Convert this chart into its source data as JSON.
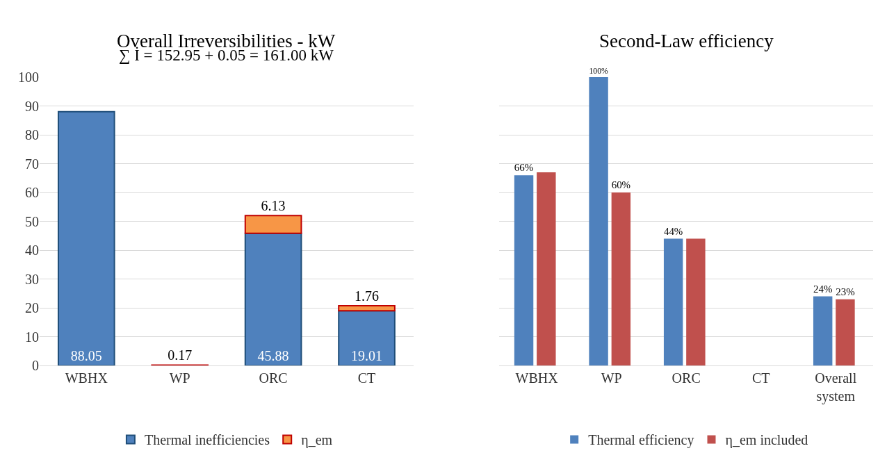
{
  "chart_data": [
    {
      "type": "bar",
      "title": "Overall Irreversibilities - kW",
      "stacked": true,
      "categories": [
        "WBHX",
        "WP",
        "ORC",
        "CT"
      ],
      "series": [
        {
          "name": "Thermal inefficiencies",
          "color": "#4f81bd",
          "values": [
            88.05,
            null,
            45.88,
            19.01
          ],
          "value_labels": [
            "88.05",
            null,
            "45.88",
            "19.01"
          ]
        },
        {
          "name": "η_em",
          "color": "#f79646",
          "values": [
            null,
            0.17,
            6.13,
            1.76
          ],
          "value_labels": [
            null,
            "0.17",
            "6.13",
            "1.76"
          ]
        }
      ],
      "ylim": [
        0,
        100
      ],
      "yticks": [
        0,
        10,
        20,
        30,
        40,
        50,
        60,
        70,
        80,
        90,
        100
      ],
      "grid": "y",
      "legend": "bottom",
      "annotations": [
        "∑ İ = 152.95 + 0.05 = 161.00 kW"
      ]
    },
    {
      "type": "bar",
      "title": "Second-Law efficiency",
      "categories": [
        "WBHX",
        "WP",
        "ORC",
        "CT",
        "Overall system"
      ],
      "series": [
        {
          "name": "Thermal efficiency",
          "color": "#4f81bd",
          "values": [
            66,
            100,
            44,
            null,
            24
          ],
          "value_labels": [
            "66%",
            "100%",
            "44%",
            null,
            "24%"
          ]
        },
        {
          "name": "η_em included",
          "color": "#c0504d",
          "values": [
            67,
            60,
            44,
            null,
            23
          ],
          "value_labels": [
            null,
            "60%",
            null,
            null,
            "23%"
          ]
        }
      ],
      "ylim": [
        0,
        100
      ],
      "yticks": [
        {
          "value": 0,
          "label": null
        },
        {
          "value": 10,
          "label": null
        },
        {
          "value": 20,
          "label": null
        },
        {
          "value": 30,
          "label": null
        },
        {
          "value": 40,
          "label": null
        },
        {
          "value": 50,
          "label": null
        },
        {
          "value": 60,
          "label": null
        },
        {
          "value": 70,
          "label": null
        },
        {
          "value": 80,
          "label": null
        },
        {
          "value": 90,
          "label": null
        },
        {
          "value": 100,
          "label": null
        }
      ],
      "grid": "y",
      "legend": "bottom",
      "tick_labels": "x"
    }
  ]
}
